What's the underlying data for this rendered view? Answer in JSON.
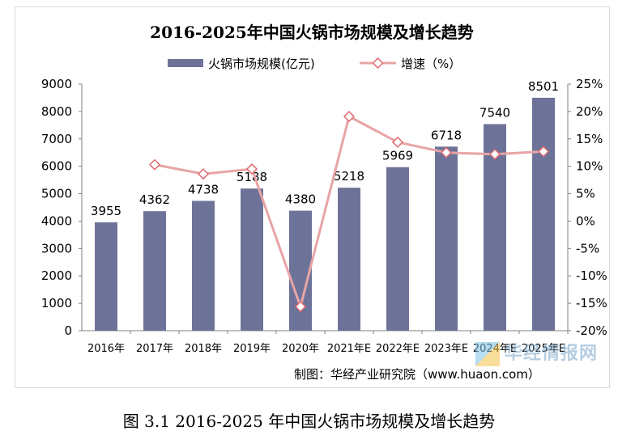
{
  "chart_data": {
    "type": "bar+line",
    "title": "2016-2025年中国火锅市场规模及增长趋势",
    "categories": [
      "2016年",
      "2017年",
      "2018年",
      "2019年",
      "2020年",
      "2021年E",
      "2022年E",
      "2023年E",
      "2024年E",
      "2025年E"
    ],
    "series": [
      {
        "name": "火锅市场规模(亿元)",
        "type": "bar",
        "axis": "left",
        "values": [
          3955,
          4362,
          4738,
          5188,
          4380,
          5218,
          5969,
          6718,
          7540,
          8501
        ],
        "data_labels": [
          "3955",
          "4362",
          "4738",
          "5188",
          "4380",
          "5218",
          "5969",
          "6718",
          "7540",
          "8501"
        ]
      },
      {
        "name": "增速（%）",
        "type": "line",
        "axis": "right",
        "values": [
          null,
          10.3,
          8.6,
          9.5,
          -15.6,
          19.1,
          14.4,
          12.5,
          12.2,
          12.7
        ]
      }
    ],
    "y_left": {
      "min": 0,
      "max": 9000,
      "ticks": [
        "0",
        "1000",
        "2000",
        "3000",
        "4000",
        "5000",
        "6000",
        "7000",
        "8000",
        "9000"
      ]
    },
    "y_right": {
      "min": -20,
      "max": 25,
      "ticks": [
        "-20%",
        "-15%",
        "-10%",
        "-5%",
        "0%",
        "5%",
        "10%",
        "15%",
        "20%",
        "25%"
      ]
    },
    "legend": "top",
    "grid": false,
    "colors": {
      "bar": "#6d7398",
      "line": "#e8a4a6",
      "marker_edge": "#e06a70",
      "marker_fill": "#ffffff"
    },
    "source": "制图：华经产业研究院（www.huaon.com）"
  },
  "watermark": {
    "text": "华经情报网"
  },
  "caption": "图 3.1 2016-2025 年中国火锅市场规模及增长趋势"
}
